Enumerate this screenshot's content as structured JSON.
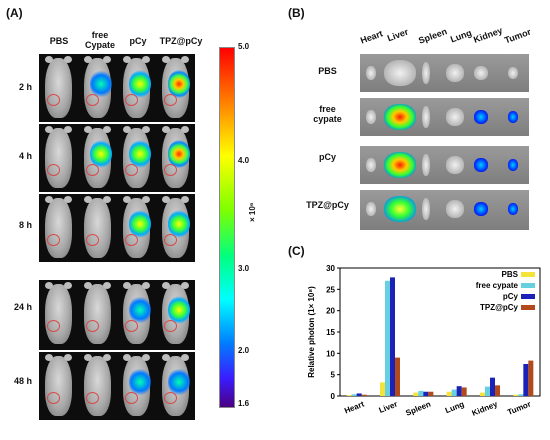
{
  "panel_a": {
    "label": "(A)",
    "columns": [
      "PBS",
      "free\nCypate",
      "pCy",
      "TPZ@pCy"
    ],
    "rows": [
      "2 h",
      "4 h",
      "8 h",
      "24 h",
      "48 h"
    ],
    "colorbar": {
      "ticks": [
        "5.0",
        "4.0",
        "3.0",
        "2.0",
        "1.6"
      ],
      "unit": "× 10⁶"
    }
  },
  "panel_b": {
    "label": "(B)",
    "organs": [
      "Heart",
      "Liver",
      "Spleen",
      "Lung",
      "Kidney",
      "Tumor"
    ],
    "groups": [
      "PBS",
      "free\ncypate",
      "pCy",
      "TPZ@pCy"
    ]
  },
  "chart_data": {
    "type": "bar",
    "panel_label": "(C)",
    "categories": [
      "Heart",
      "Liver",
      "Spleen",
      "Lung",
      "Kidney",
      "Tumor"
    ],
    "series": [
      {
        "name": "PBS",
        "color": "#f5e23a",
        "values": [
          0.2,
          3.2,
          0.8,
          1.0,
          0.8,
          0.3
        ]
      },
      {
        "name": "free cypate",
        "color": "#66d0e0",
        "values": [
          0.4,
          27.0,
          1.2,
          1.5,
          2.2,
          0.4
        ]
      },
      {
        "name": "pCy",
        "color": "#1a22b8",
        "values": [
          0.6,
          27.8,
          1.0,
          2.3,
          4.3,
          7.5
        ]
      },
      {
        "name": "TPZ@pCy",
        "color": "#b34a1c",
        "values": [
          0.3,
          9.0,
          1.0,
          2.0,
          2.5,
          8.3
        ]
      }
    ],
    "ylabel": "Relative photon (1× 10⁸)",
    "ylim": [
      0,
      30
    ],
    "yticks": [
      0,
      5,
      10,
      15,
      20,
      25,
      30
    ],
    "legend": "top-right"
  }
}
